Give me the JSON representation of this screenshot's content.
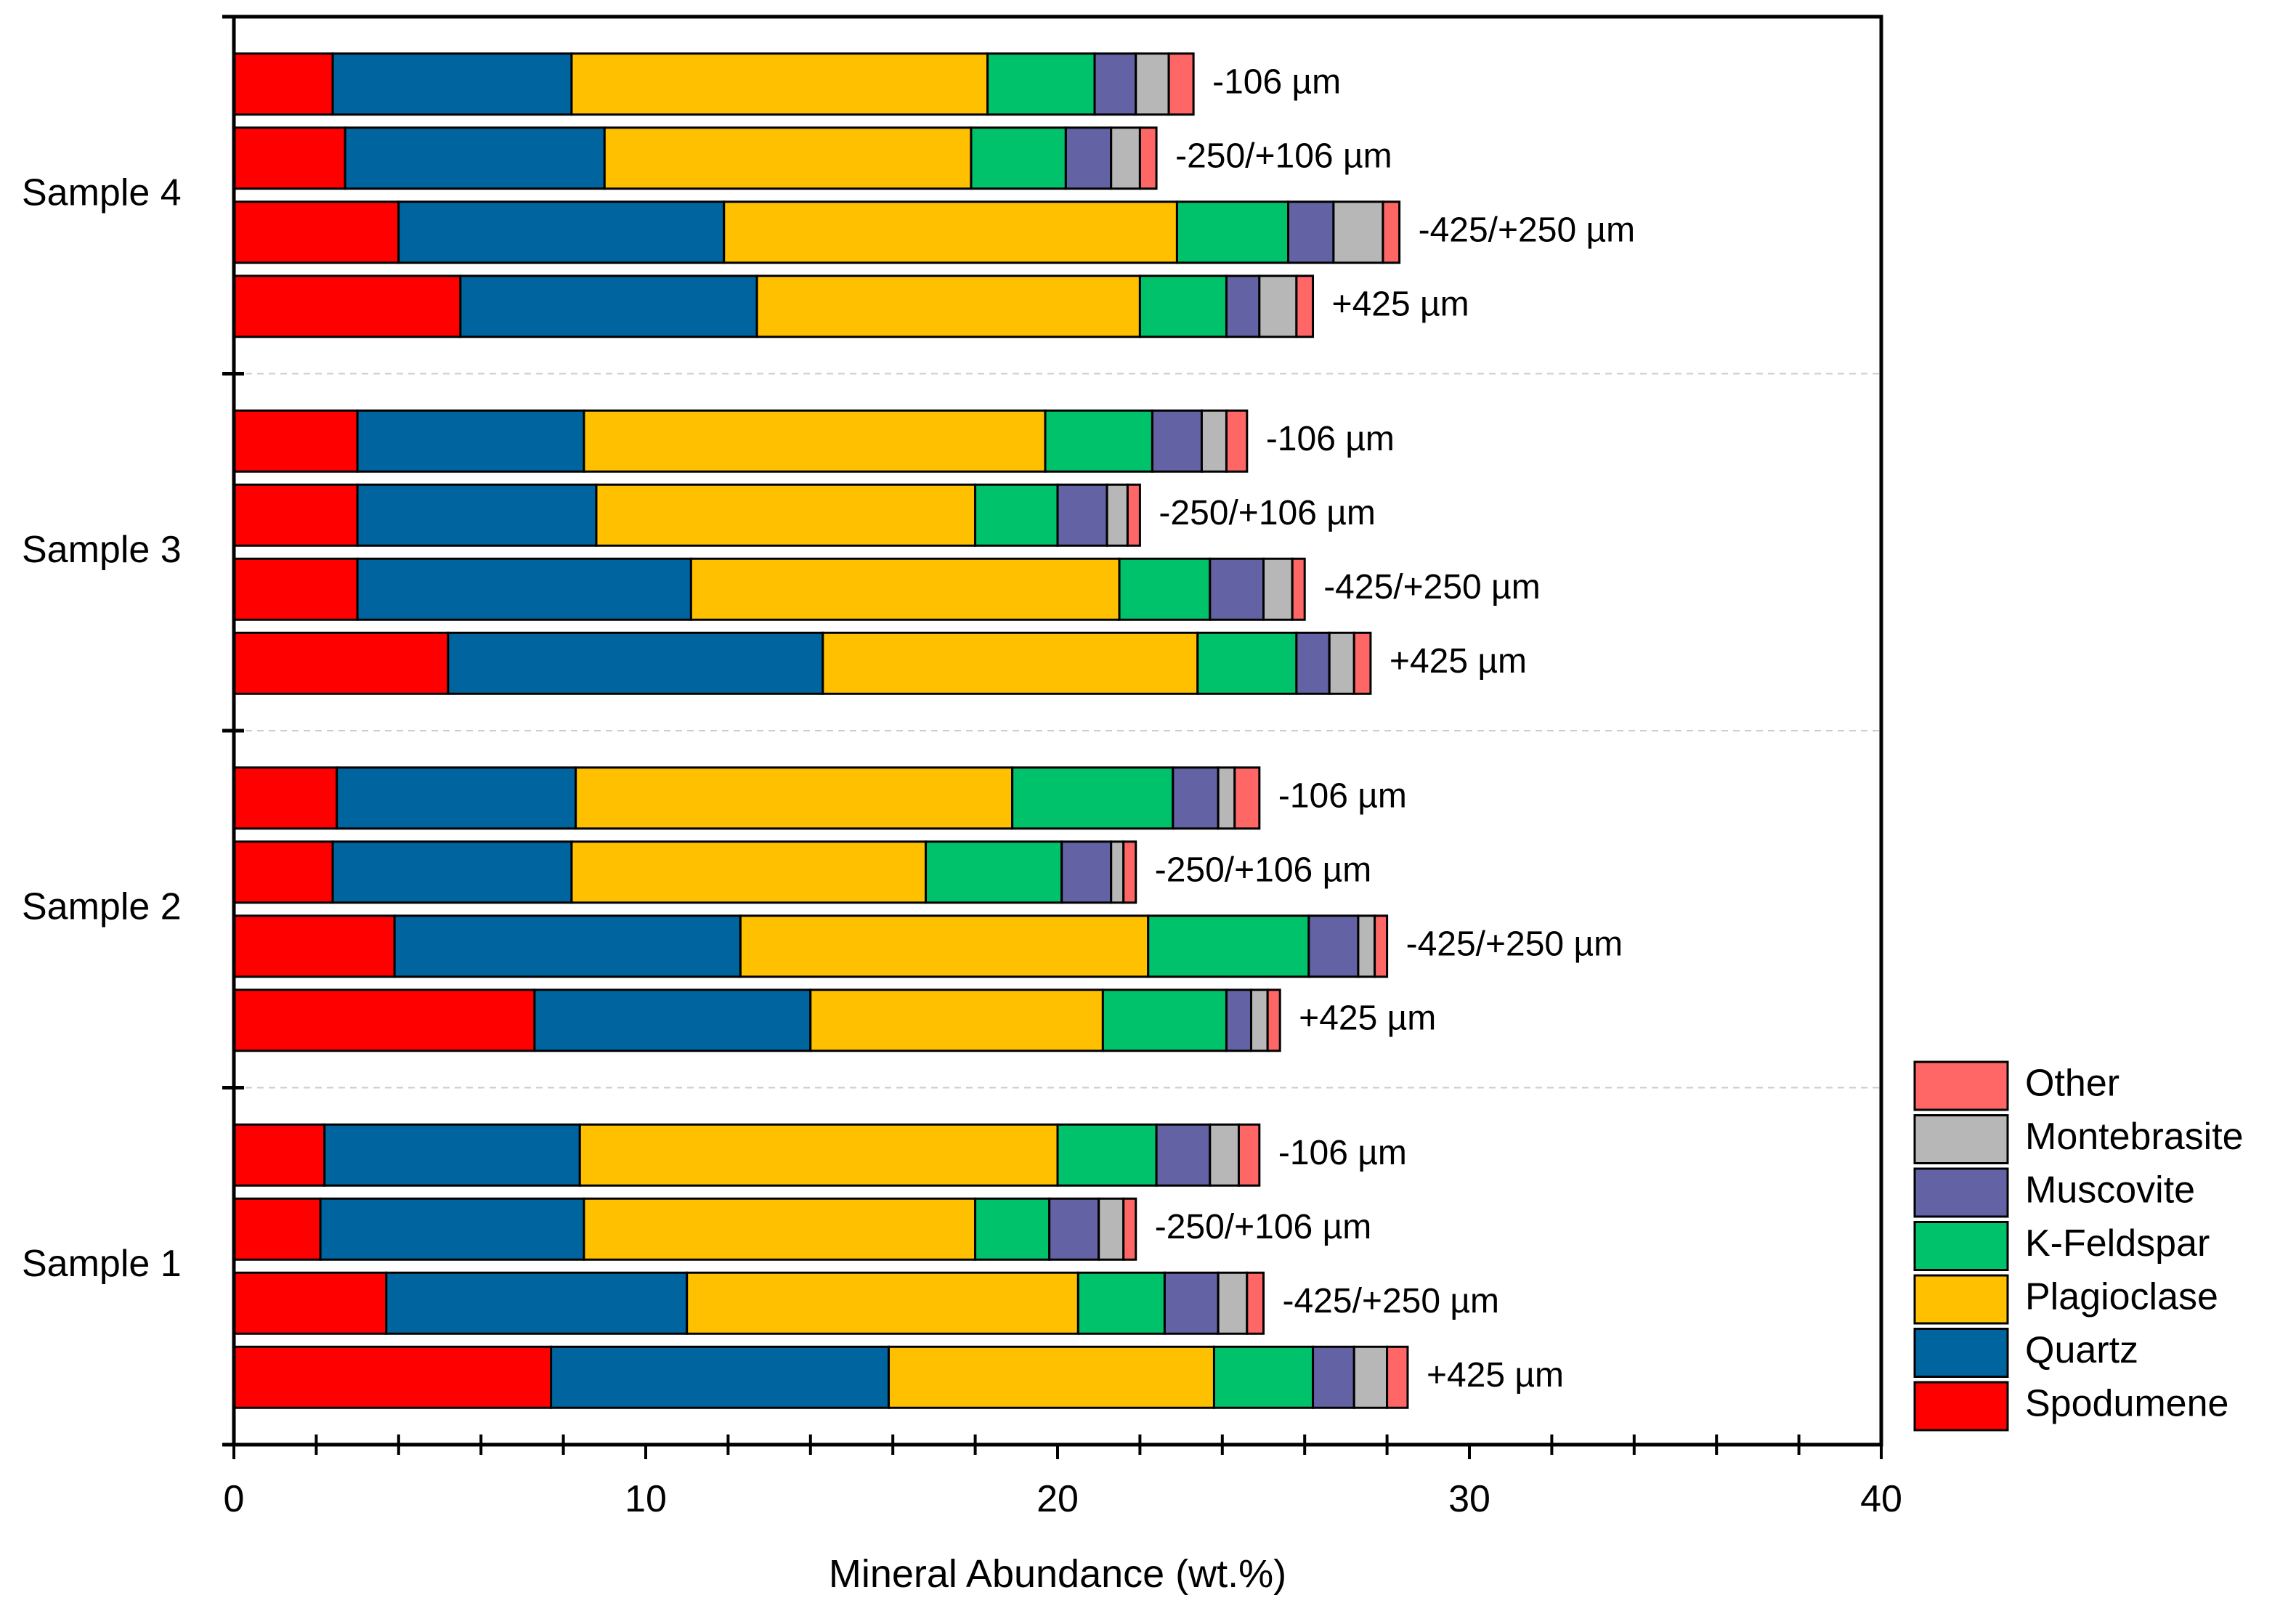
{
  "chart_data": {
    "type": "bar",
    "orientation": "horizontal",
    "stacked": true,
    "title": "",
    "xlabel": "Mineral Abundance (wt.%)",
    "ylabel": "",
    "xlim": [
      0,
      40
    ],
    "x_ticks": [
      0,
      10,
      20,
      30,
      40
    ],
    "grid": "dashed separators between sample groups",
    "legend_position": "bottom-right outside",
    "series_names": [
      "Spodumene",
      "Quartz",
      "Plagioclase",
      "K-Feldspar",
      "Muscovite",
      "Montebrasite",
      "Other"
    ],
    "colors": {
      "Spodumene": "#ff0000",
      "Quartz": "#00649e",
      "Plagioclase": "#ffc000",
      "K-Feldspar": "#00c26a",
      "Muscovite": "#6262a4",
      "Montebrasite": "#b7b7b7",
      "Other": "#ff6666"
    },
    "legend_order": [
      "Other",
      "Montebrasite",
      "Muscovite",
      "K-Feldspar",
      "Plagioclase",
      "Quartz",
      "Spodumene"
    ],
    "groups": [
      {
        "name": "Sample 4",
        "bars": [
          {
            "label": "-106 µm",
            "values": [
              2.4,
              5.8,
              10.1,
              2.6,
              1.0,
              0.8,
              0.6
            ]
          },
          {
            "label": "-250/+106 µm",
            "values": [
              2.7,
              6.3,
              8.9,
              2.3,
              1.1,
              0.7,
              0.4
            ]
          },
          {
            "label": "-425/+250 µm",
            "values": [
              4.0,
              7.9,
              11.0,
              2.7,
              1.1,
              1.2,
              0.4
            ]
          },
          {
            "label": "+425 µm",
            "values": [
              5.5,
              7.2,
              9.3,
              2.1,
              0.8,
              0.9,
              0.4
            ]
          }
        ]
      },
      {
        "name": "Sample 3",
        "bars": [
          {
            "label": "-106 µm",
            "values": [
              3.0,
              5.5,
              11.2,
              2.6,
              1.2,
              0.6,
              0.5
            ]
          },
          {
            "label": "-250/+106 µm",
            "values": [
              3.0,
              5.8,
              9.2,
              2.0,
              1.2,
              0.5,
              0.3
            ]
          },
          {
            "label": "-425/+250 µm",
            "values": [
              3.0,
              8.1,
              10.4,
              2.2,
              1.3,
              0.7,
              0.3
            ]
          },
          {
            "label": "+425 µm",
            "values": [
              5.2,
              9.1,
              9.1,
              2.4,
              0.8,
              0.6,
              0.4
            ]
          }
        ]
      },
      {
        "name": "Sample 2",
        "bars": [
          {
            "label": "-106 µm",
            "values": [
              2.5,
              5.8,
              10.6,
              3.9,
              1.1,
              0.4,
              0.6
            ]
          },
          {
            "label": "-250/+106 µm",
            "values": [
              2.4,
              5.8,
              8.6,
              3.3,
              1.2,
              0.3,
              0.3
            ]
          },
          {
            "label": "-425/+250 µm",
            "values": [
              3.9,
              8.4,
              9.9,
              3.9,
              1.2,
              0.4,
              0.3
            ]
          },
          {
            "label": "+425 µm",
            "values": [
              7.3,
              6.7,
              7.1,
              3.0,
              0.6,
              0.4,
              0.3
            ]
          }
        ]
      },
      {
        "name": "Sample 1",
        "bars": [
          {
            "label": "-106 µm",
            "values": [
              2.2,
              6.2,
              11.6,
              2.4,
              1.3,
              0.7,
              0.5
            ]
          },
          {
            "label": "-250/+106 µm",
            "values": [
              2.1,
              6.4,
              9.5,
              1.8,
              1.2,
              0.6,
              0.3
            ]
          },
          {
            "label": "-425/+250 µm",
            "values": [
              3.7,
              7.3,
              9.5,
              2.1,
              1.3,
              0.7,
              0.4
            ]
          },
          {
            "label": "+425 µm",
            "values": [
              7.7,
              8.2,
              7.9,
              2.4,
              1.0,
              0.8,
              0.5
            ]
          }
        ]
      }
    ]
  }
}
